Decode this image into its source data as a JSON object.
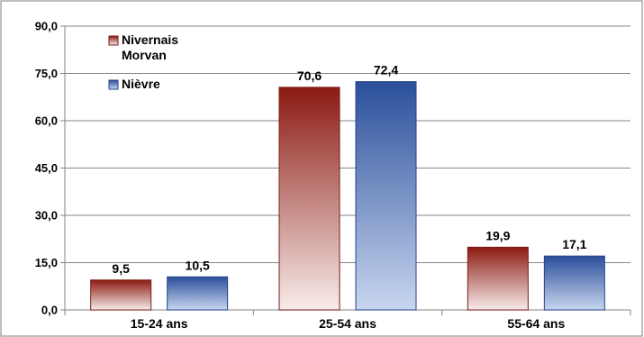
{
  "chart_data": {
    "type": "bar",
    "categories": [
      "15-24 ans",
      "25-54 ans",
      "55-64 ans"
    ],
    "series": [
      {
        "name": "Nivernais Morvan",
        "name_lines": [
          "Nivernais",
          "Morvan"
        ],
        "values": [
          9.5,
          70.6,
          19.9
        ],
        "labels": [
          "9,5",
          "70,6",
          "19,9"
        ],
        "color_top": "#8b1a12",
        "color_bottom": "#f8ecea",
        "stroke": "#7a1a14"
      },
      {
        "name": "Nièvre",
        "name_lines": [
          "Nièvre"
        ],
        "values": [
          10.5,
          72.4,
          17.1
        ],
        "labels": [
          "10,5",
          "72,4",
          "17,1"
        ],
        "color_top": "#2a4f9a",
        "color_bottom": "#c8d6ef",
        "stroke": "#23438a"
      }
    ],
    "y_ticks": [
      0,
      15,
      30,
      45,
      60,
      75,
      90
    ],
    "y_tick_labels": [
      "0,0",
      "15,0",
      "30,0",
      "45,0",
      "60,0",
      "75,0",
      "90,0"
    ],
    "ylim": [
      0,
      90
    ],
    "grid": true,
    "legend_position": "top-left"
  }
}
